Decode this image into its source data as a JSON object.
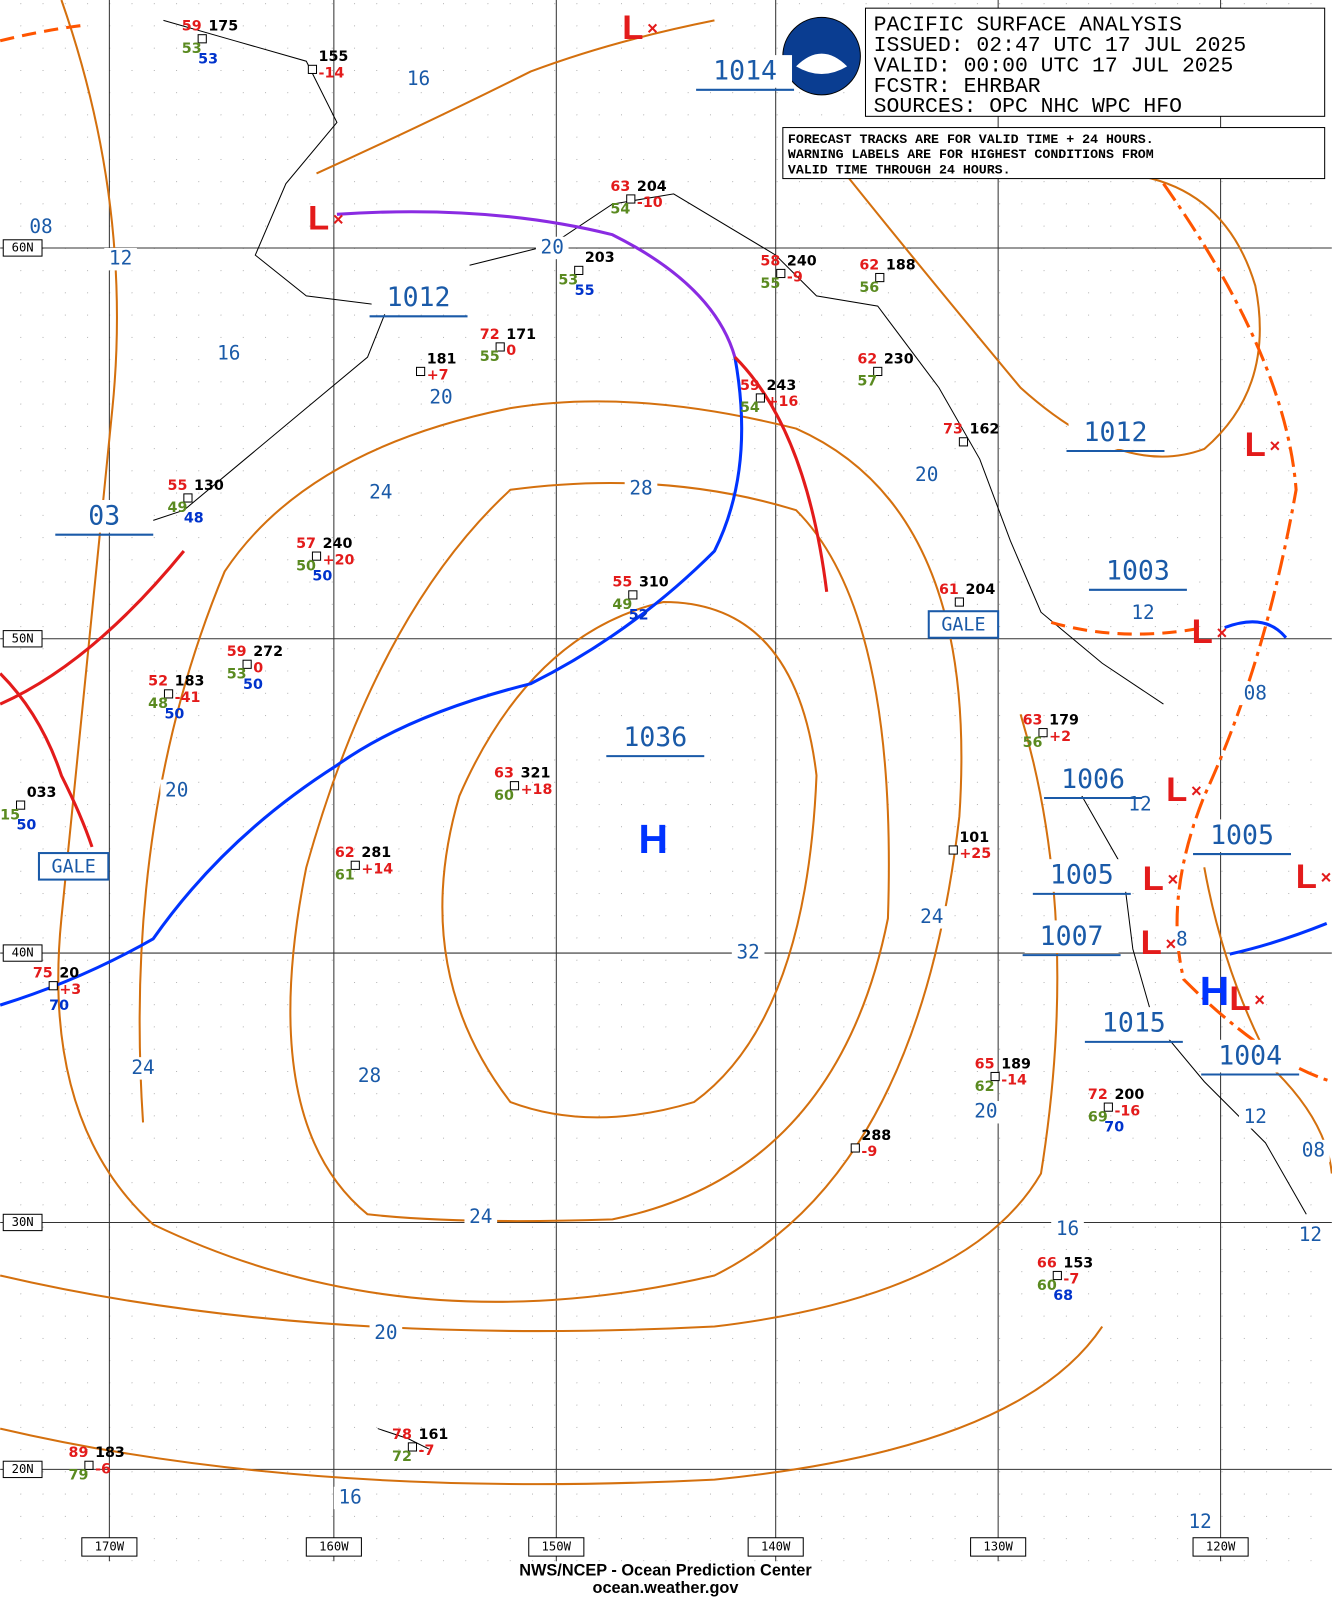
{
  "header": {
    "lines": [
      "PACIFIC SURFACE ANALYSIS",
      "ISSUED: 02:47 UTC 17 JUL 2025",
      "VALID:  00:00 UTC 17 JUL 2025",
      "FCSTR:  EHRBAR",
      "SOURCES: OPC NHC WPC HFO"
    ]
  },
  "notice": {
    "lines": [
      "FORECAST TRACKS ARE FOR VALID TIME + 24 HOURS.",
      "WARNING LABELS ARE FOR HIGHEST CONDITIONS FROM",
      "VALID TIME THROUGH 24 HOURS."
    ]
  },
  "latitude_labels": [
    "60N",
    "50N",
    "40N",
    "30N",
    "20N"
  ],
  "longitude_labels": [
    "170W",
    "160W",
    "150W",
    "140W",
    "130W",
    "120W"
  ],
  "pressure_centers": [
    "1014",
    "1012",
    "1012",
    "1003",
    "1036",
    "1006",
    "1005",
    "1005",
    "1007",
    "1015",
    "1004",
    "03"
  ],
  "center_symbols": [
    "L",
    "L",
    "L",
    "L",
    "L",
    "L",
    "L",
    "L",
    "L",
    "H",
    "H"
  ],
  "isobar_labels": [
    "16",
    "08",
    "12",
    "20",
    "16",
    "20",
    "24",
    "28",
    "20",
    "12",
    "08",
    "12",
    "20",
    "24",
    "32",
    "8",
    "24",
    "28",
    "20",
    "12",
    "08",
    "24",
    "16",
    "12",
    "20",
    "16",
    "12"
  ],
  "warnings": [
    "GALE",
    "GALE"
  ],
  "stations": [
    {
      "pressure": "175",
      "temp": "59",
      "dewpoint": "53",
      "sst": "53"
    },
    {
      "pressure": "155",
      "tendency": "-14"
    },
    {
      "pressure": "204",
      "temp": "63",
      "dewpoint": "54",
      "tendency": "-10"
    },
    {
      "pressure": "203",
      "dewpoint": "53",
      "sst": "55"
    },
    {
      "pressure": "240",
      "temp": "58",
      "dewpoint": "55",
      "tendency": "-9"
    },
    {
      "pressure": "188",
      "temp": "62",
      "dewpoint": "56"
    },
    {
      "pressure": "171",
      "temp": "72",
      "dewpoint": "55",
      "tendency": "0"
    },
    {
      "pressure": "181",
      "tendency": "+7"
    },
    {
      "pressure": "230",
      "temp": "62",
      "dewpoint": "57"
    },
    {
      "pressure": "243",
      "temp": "59",
      "dewpoint": "54",
      "tendency": "+16"
    },
    {
      "pressure": "162",
      "temp": "73"
    },
    {
      "pressure": "130",
      "temp": "55",
      "dewpoint": "49",
      "sst": "48"
    },
    {
      "pressure": "240",
      "temp": "57",
      "dewpoint": "50",
      "sst": "50",
      "tendency": "+20"
    },
    {
      "pressure": "310",
      "temp": "55",
      "dewpoint": "49",
      "sst": "52"
    },
    {
      "pressure": "272",
      "temp": "59",
      "dewpoint": "53",
      "sst": "50",
      "tendency": "0"
    },
    {
      "pressure": "183",
      "temp": "52",
      "dewpoint": "48",
      "sst": "50",
      "tendency": "-41"
    },
    {
      "pressure": "321",
      "temp": "63",
      "dewpoint": "60",
      "tendency": "+18"
    },
    {
      "pressure": "281",
      "temp": "62",
      "dewpoint": "61",
      "tendency": "+14"
    },
    {
      "pressure": "204",
      "temp": "61"
    },
    {
      "pressure": "179",
      "temp": "63",
      "dewpoint": "56",
      "tendency": "+2"
    },
    {
      "pressure": "101",
      "tendency": "+25"
    },
    {
      "pressure": "189",
      "temp": "65",
      "dewpoint": "62",
      "tendency": "-14"
    },
    {
      "pressure": "200",
      "temp": "72",
      "dewpoint": "69",
      "sst": "70",
      "tendency": "-16"
    },
    {
      "pressure": "288",
      "tendency": "-9"
    },
    {
      "pressure": "153",
      "temp": "66",
      "dewpoint": "60",
      "sst": "68",
      "tendency": "-7"
    },
    {
      "pressure": "161",
      "temp": "78",
      "dewpoint": "72",
      "tendency": "-7"
    },
    {
      "pressure": "183",
      "temp": "89",
      "dewpoint": "79",
      "tendency": "-6"
    },
    {
      "pressure": "20",
      "temp": "75",
      "sst": "70",
      "tendency": "+3"
    },
    {
      "pressure": "033",
      "dewpoint": "15",
      "sst": "50"
    }
  ],
  "footer": [
    "NWS/NCEP - Ocean Prediction Center",
    "ocean.weather.gov"
  ]
}
